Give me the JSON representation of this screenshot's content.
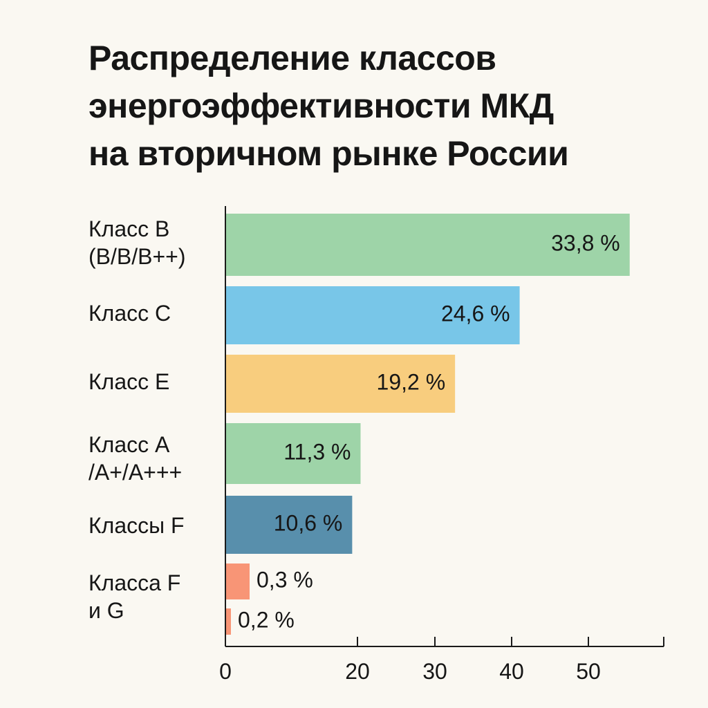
{
  "chart_data": {
    "type": "bar",
    "orientation": "horizontal",
    "title_lines": [
      "Распределение классов",
      "энергоэффективности МКД",
      "на вторичном рынке России"
    ],
    "categories": [
      {
        "label_lines": [
          "Класс B",
          "(B/B/B++)"
        ],
        "bars": [
          {
            "value": 33.8,
            "label": "33,8 %",
            "color": "#9ed4a8"
          }
        ]
      },
      {
        "label_lines": [
          "Класс C"
        ],
        "bars": [
          {
            "value": 24.6,
            "label": "24,6 %",
            "color": "#78c6e8"
          }
        ]
      },
      {
        "label_lines": [
          "Класс E"
        ],
        "bars": [
          {
            "value": 19.2,
            "label": "19,2 %",
            "color": "#f8cd7e"
          }
        ]
      },
      {
        "label_lines": [
          "Класс A",
          "/A+/A+++"
        ],
        "bars": [
          {
            "value": 11.3,
            "label": "11,3 %",
            "color": "#9ed4a8"
          }
        ]
      },
      {
        "label_lines": [
          "Классы F"
        ],
        "bars": [
          {
            "value": 10.6,
            "label": "10,6 %",
            "color": "#588fac"
          }
        ]
      },
      {
        "label_lines": [
          "Класса F",
          "и G"
        ],
        "bars": [
          {
            "value": 0.3,
            "label": "0,3 %",
            "color": "#f89576"
          },
          {
            "value": 0.2,
            "label": "0,2 %",
            "color": "#f89576"
          }
        ]
      }
    ],
    "x_ticks": [
      {
        "value": 0,
        "label": "0"
      },
      {
        "value": 20,
        "label": "20"
      },
      {
        "value": 30,
        "label": "30"
      },
      {
        "value": 40,
        "label": "40"
      },
      {
        "value": 50,
        "label": "50"
      }
    ],
    "xlim": [
      0,
      50
    ],
    "grid": false,
    "legend": "none"
  }
}
